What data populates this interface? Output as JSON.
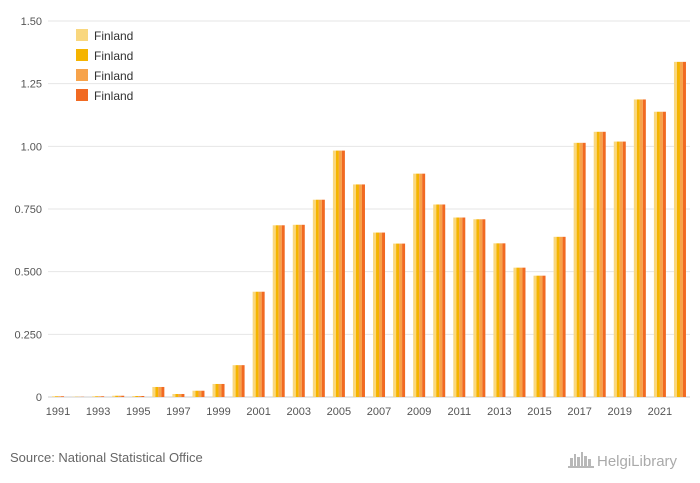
{
  "chart_data": {
    "type": "bar",
    "categories": [
      "1991",
      "1992",
      "1993",
      "1994",
      "1995",
      "1996",
      "1997",
      "1998",
      "1999",
      "2000",
      "2001",
      "2002",
      "2003",
      "2004",
      "2005",
      "2006",
      "2007",
      "2008",
      "2009",
      "2010",
      "2011",
      "2012",
      "2013",
      "2014",
      "2015",
      "2016",
      "2017",
      "2018",
      "2019",
      "2020",
      "2021",
      "2022"
    ],
    "x_tick_labels": [
      "1991",
      "1993",
      "1995",
      "1997",
      "1999",
      "2001",
      "2003",
      "2005",
      "2007",
      "2009",
      "2011",
      "2013",
      "2015",
      "2017",
      "2019",
      "2021"
    ],
    "series": [
      {
        "name": "Finland",
        "color": "#f9d77e",
        "values": [
          0.003,
          0.001,
          0.003,
          0.005,
          0.004,
          0.04,
          0.012,
          0.025,
          0.052,
          0.127,
          0.42,
          0.685,
          0.687,
          0.787,
          0.983,
          0.848,
          0.656,
          0.612,
          0.891,
          0.768,
          0.716,
          0.709,
          0.613,
          0.516,
          0.484,
          0.639,
          1.014,
          1.058,
          1.019,
          1.187,
          1.138,
          1.337
        ]
      },
      {
        "name": "Finland",
        "color": "#f5b400",
        "values": [
          0.003,
          0.001,
          0.003,
          0.005,
          0.004,
          0.04,
          0.012,
          0.025,
          0.052,
          0.127,
          0.42,
          0.685,
          0.687,
          0.787,
          0.983,
          0.848,
          0.656,
          0.612,
          0.891,
          0.768,
          0.716,
          0.709,
          0.613,
          0.516,
          0.484,
          0.639,
          1.014,
          1.058,
          1.019,
          1.187,
          1.138,
          1.337
        ]
      },
      {
        "name": "Finland",
        "color": "#f7a34a",
        "values": [
          0.003,
          0.001,
          0.003,
          0.005,
          0.004,
          0.04,
          0.012,
          0.025,
          0.052,
          0.127,
          0.42,
          0.685,
          0.687,
          0.787,
          0.983,
          0.848,
          0.656,
          0.612,
          0.891,
          0.768,
          0.716,
          0.709,
          0.613,
          0.516,
          0.484,
          0.639,
          1.014,
          1.058,
          1.019,
          1.187,
          1.138,
          1.337
        ]
      },
      {
        "name": "Finland",
        "color": "#f16a22",
        "values": [
          0.003,
          0.001,
          0.003,
          0.005,
          0.004,
          0.04,
          0.012,
          0.025,
          0.052,
          0.127,
          0.42,
          0.685,
          0.687,
          0.787,
          0.983,
          0.848,
          0.656,
          0.612,
          0.891,
          0.768,
          0.716,
          0.709,
          0.613,
          0.516,
          0.484,
          0.639,
          1.014,
          1.058,
          1.019,
          1.187,
          1.138,
          1.337
        ]
      }
    ],
    "y_ticks": [
      0,
      0.25,
      0.5,
      0.75,
      1.0,
      1.25,
      1.5
    ],
    "y_tick_labels": [
      "0",
      "0.250",
      "0.500",
      "0.750",
      "1.00",
      "1.25",
      "1.50"
    ],
    "ylim": [
      0,
      1.5
    ],
    "grid": true,
    "legend_position": "top-left",
    "title": "",
    "xlabel": "",
    "ylabel": ""
  },
  "footer": {
    "source": "Source: National Statistical Office",
    "logo_text": "HelgiLibrary",
    "logo_icon": "city-skyline-icon"
  }
}
